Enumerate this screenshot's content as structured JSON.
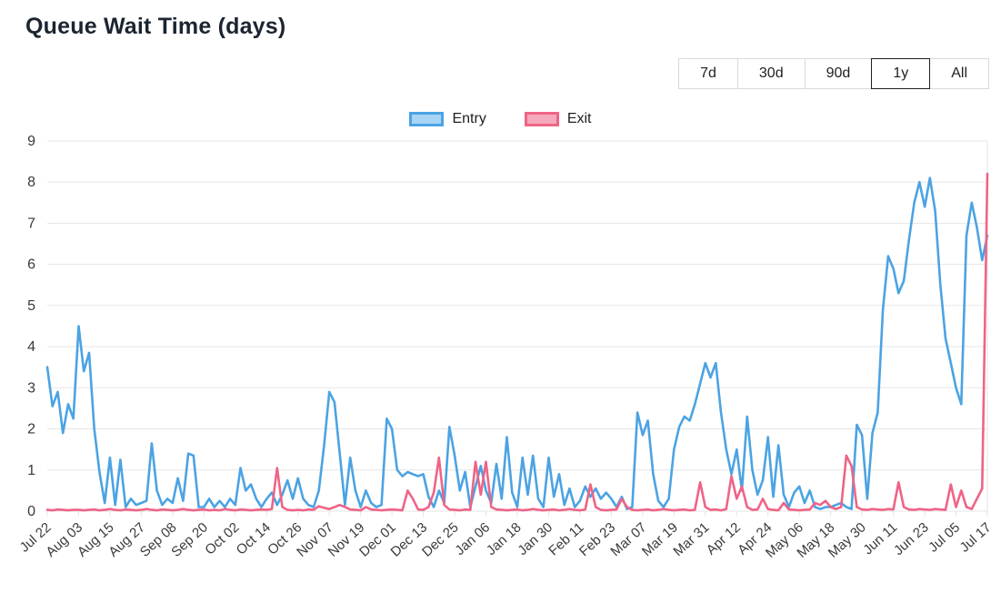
{
  "page": {
    "title": "Queue Wait Time (days)"
  },
  "range_buttons": {
    "options": [
      "7d",
      "30d",
      "90d",
      "1y",
      "All"
    ],
    "selected": "1y"
  },
  "legend": [
    {
      "label": "Entry",
      "fill": "#a9d4f5",
      "border": "#4ba3e3"
    },
    {
      "label": "Exit",
      "fill": "#f6a9bc",
      "border": "#ef6486"
    }
  ],
  "chart_data": {
    "type": "line",
    "title": "Queue Wait Time (days)",
    "xlabel": "",
    "ylabel": "",
    "ylim": [
      0,
      9
    ],
    "yticks": [
      0,
      1,
      2,
      3,
      4,
      5,
      6,
      7,
      8,
      9
    ],
    "grid": true,
    "grid_color": "#e6e6e6",
    "legend_position": "top-center",
    "x_unit": "daily samples over 1 year, values listed every 2 days",
    "categories": [
      "Jul 22",
      "Aug 03",
      "Aug 15",
      "Aug 27",
      "Sep 08",
      "Sep 20",
      "Oct 02",
      "Oct 14",
      "Oct 26",
      "Nov 07",
      "Nov 19",
      "Dec 01",
      "Dec 13",
      "Dec 25",
      "Jan 06",
      "Jan 18",
      "Jan 30",
      "Feb 11",
      "Feb 23",
      "Mar 07",
      "Mar 19",
      "Mar 31",
      "Apr 12",
      "Apr 24",
      "May 06",
      "May 18",
      "May 30",
      "Jun 11",
      "Jun 23",
      "Jul 05",
      "Jul 17"
    ],
    "label_every": 6,
    "series": [
      {
        "name": "Entry",
        "color": "#4ba3e3",
        "values": [
          3.5,
          2.55,
          2.9,
          1.9,
          2.6,
          2.25,
          4.5,
          3.4,
          3.85,
          2.0,
          0.95,
          0.2,
          1.3,
          0.15,
          1.25,
          0.1,
          0.3,
          0.15,
          0.2,
          0.25,
          1.65,
          0.5,
          0.15,
          0.3,
          0.2,
          0.8,
          0.25,
          1.4,
          1.35,
          0.1,
          0.1,
          0.3,
          0.1,
          0.25,
          0.1,
          0.3,
          0.15,
          1.05,
          0.5,
          0.65,
          0.3,
          0.1,
          0.3,
          0.45,
          0.15,
          0.4,
          0.75,
          0.3,
          0.8,
          0.3,
          0.15,
          0.1,
          0.5,
          1.6,
          2.9,
          2.65,
          1.4,
          0.15,
          1.3,
          0.5,
          0.1,
          0.5,
          0.2,
          0.1,
          0.15,
          2.25,
          2.0,
          1.0,
          0.85,
          0.95,
          0.9,
          0.85,
          0.9,
          0.35,
          0.1,
          0.5,
          0.2,
          2.05,
          1.35,
          0.5,
          0.95,
          0.1,
          0.6,
          1.1,
          0.5,
          0.2,
          1.15,
          0.3,
          1.8,
          0.45,
          0.1,
          1.3,
          0.4,
          1.35,
          0.3,
          0.1,
          1.3,
          0.35,
          0.9,
          0.15,
          0.55,
          0.1,
          0.25,
          0.6,
          0.35,
          0.55,
          0.3,
          0.45,
          0.3,
          0.1,
          0.35,
          0.05,
          0.1,
          2.4,
          1.85,
          2.2,
          0.9,
          0.25,
          0.1,
          0.3,
          1.5,
          2.05,
          2.3,
          2.2,
          2.6,
          3.1,
          3.6,
          3.25,
          3.6,
          2.4,
          1.5,
          0.9,
          1.5,
          0.5,
          2.3,
          1.0,
          0.4,
          0.75,
          1.8,
          0.35,
          1.6,
          0.4,
          0.1,
          0.45,
          0.6,
          0.2,
          0.5,
          0.1,
          0.05,
          0.1,
          0.1,
          0.15,
          0.2,
          0.1,
          0.05,
          2.1,
          1.85,
          0.3,
          1.9,
          2.4,
          4.9,
          6.2,
          5.9,
          5.3,
          5.6,
          6.6,
          7.5,
          8.0,
          7.4,
          8.1,
          7.3,
          5.5,
          4.2,
          3.6,
          3.0,
          2.6,
          6.7,
          7.5,
          6.9,
          6.1,
          6.7
        ]
      },
      {
        "name": "Exit",
        "color": "#ef6486",
        "values": [
          0.03,
          0.02,
          0.04,
          0.03,
          0.02,
          0.03,
          0.03,
          0.02,
          0.03,
          0.04,
          0.02,
          0.03,
          0.05,
          0.03,
          0.02,
          0.04,
          0.03,
          0.02,
          0.03,
          0.05,
          0.03,
          0.02,
          0.04,
          0.03,
          0.02,
          0.03,
          0.05,
          0.03,
          0.02,
          0.03,
          0.04,
          0.02,
          0.03,
          0.02,
          0.05,
          0.03,
          0.02,
          0.04,
          0.03,
          0.02,
          0.03,
          0.04,
          0.03,
          0.05,
          1.05,
          0.1,
          0.03,
          0.02,
          0.03,
          0.02,
          0.04,
          0.03,
          0.12,
          0.08,
          0.05,
          0.1,
          0.15,
          0.1,
          0.04,
          0.03,
          0.02,
          0.1,
          0.04,
          0.03,
          0.02,
          0.03,
          0.04,
          0.03,
          0.02,
          0.5,
          0.3,
          0.04,
          0.03,
          0.1,
          0.45,
          1.3,
          0.15,
          0.04,
          0.03,
          0.02,
          0.04,
          0.03,
          1.2,
          0.4,
          1.2,
          0.1,
          0.04,
          0.03,
          0.02,
          0.03,
          0.04,
          0.02,
          0.03,
          0.05,
          0.03,
          0.02,
          0.03,
          0.04,
          0.02,
          0.03,
          0.05,
          0.03,
          0.02,
          0.04,
          0.65,
          0.1,
          0.03,
          0.02,
          0.03,
          0.04,
          0.3,
          0.1,
          0.03,
          0.02,
          0.03,
          0.04,
          0.02,
          0.03,
          0.05,
          0.03,
          0.02,
          0.03,
          0.04,
          0.02,
          0.03,
          0.7,
          0.1,
          0.03,
          0.04,
          0.02,
          0.05,
          0.85,
          0.3,
          0.6,
          0.1,
          0.03,
          0.04,
          0.3,
          0.05,
          0.03,
          0.02,
          0.2,
          0.04,
          0.03,
          0.02,
          0.03,
          0.04,
          0.2,
          0.15,
          0.25,
          0.1,
          0.05,
          0.1,
          1.35,
          1.1,
          0.1,
          0.04,
          0.03,
          0.05,
          0.04,
          0.03,
          0.05,
          0.04,
          0.7,
          0.1,
          0.04,
          0.03,
          0.05,
          0.04,
          0.03,
          0.05,
          0.04,
          0.03,
          0.65,
          0.1,
          0.5,
          0.1,
          0.05,
          0.3,
          0.55,
          8.2
        ]
      }
    ]
  }
}
